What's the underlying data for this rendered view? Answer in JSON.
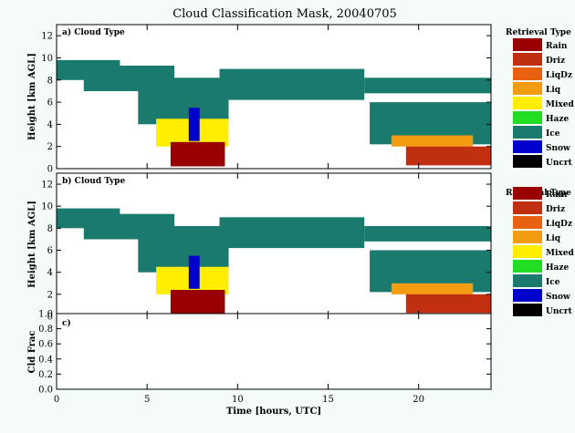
{
  "chart_data": {
    "type": "heatmap",
    "title": "Cloud Classification Mask, 20040705",
    "xlabel": "Time [hours, UTC]",
    "xlim": [
      0,
      24
    ],
    "x_ticks": [
      "0",
      "5",
      "10",
      "15",
      "20"
    ],
    "colors": {
      "Rain": "#990000",
      "Driz": "#c03010",
      "LiqDz": "#e86010",
      "Liq": "#f39c12",
      "Mixed": "#ffee00",
      "Haze": "#22dd22",
      "Ice": "#1a7a6e",
      "Snow": "#0000cc",
      "Uncrt": "#000000"
    },
    "panels": [
      {
        "id": "a",
        "label": "a) Cloud Type",
        "ylabel": "Height [km AGL]",
        "ylim": [
          0,
          13
        ],
        "y_ticks": [
          "0",
          "2",
          "4",
          "6",
          "8",
          "10",
          "12"
        ],
        "legend_title": "Retrieval Type",
        "legend": [
          "Rain",
          "Driz",
          "LiqDz",
          "Liq",
          "Mixed",
          "Haze",
          "Ice",
          "Snow",
          "Uncrt"
        ],
        "regions": [
          {
            "type": "Ice",
            "t0": 0.0,
            "t1": 3.5,
            "h0": 8.0,
            "h1": 9.8
          },
          {
            "type": "Ice",
            "t0": 1.5,
            "t1": 6.5,
            "h0": 7.0,
            "h1": 9.3
          },
          {
            "type": "Ice",
            "t0": 4.5,
            "t1": 9.5,
            "h0": 4.0,
            "h1": 8.2
          },
          {
            "type": "Ice",
            "t0": 9.0,
            "t1": 17.0,
            "h0": 6.2,
            "h1": 9.0
          },
          {
            "type": "Ice",
            "t0": 17.0,
            "t1": 24.0,
            "h0": 6.8,
            "h1": 8.2
          },
          {
            "type": "Ice",
            "t0": 17.3,
            "t1": 24.0,
            "h0": 2.2,
            "h1": 6.0
          },
          {
            "type": "Mixed",
            "t0": 5.5,
            "t1": 9.5,
            "h0": 2.0,
            "h1": 4.5
          },
          {
            "type": "Snow",
            "t0": 7.3,
            "t1": 7.9,
            "h0": 2.5,
            "h1": 5.5
          },
          {
            "type": "Liq",
            "t0": 18.5,
            "t1": 23.0,
            "h0": 2.0,
            "h1": 3.0
          },
          {
            "type": "Rain",
            "t0": 6.3,
            "t1": 9.3,
            "h0": 0.2,
            "h1": 2.4
          },
          {
            "type": "Driz",
            "t0": 19.3,
            "t1": 24.0,
            "h0": 0.3,
            "h1": 2.0
          }
        ]
      },
      {
        "id": "b",
        "label": "b) Cloud Type",
        "ylabel": "Height [km AGL]",
        "ylim": [
          0,
          13
        ],
        "y_ticks": [
          "0",
          "2",
          "4",
          "6",
          "8",
          "10",
          "12"
        ],
        "legend_title": "Retrieval Type",
        "legend": [
          "Rain",
          "Driz",
          "LiqDz",
          "Liq",
          "Mixed",
          "Haze",
          "Ice",
          "Snow",
          "Uncrt"
        ],
        "regions": [
          {
            "type": "Ice",
            "t0": 0.0,
            "t1": 3.5,
            "h0": 8.0,
            "h1": 9.8
          },
          {
            "type": "Ice",
            "t0": 1.5,
            "t1": 6.5,
            "h0": 7.0,
            "h1": 9.3
          },
          {
            "type": "Ice",
            "t0": 4.5,
            "t1": 9.5,
            "h0": 4.0,
            "h1": 8.2
          },
          {
            "type": "Ice",
            "t0": 9.0,
            "t1": 17.0,
            "h0": 6.2,
            "h1": 9.0
          },
          {
            "type": "Ice",
            "t0": 17.0,
            "t1": 24.0,
            "h0": 6.8,
            "h1": 8.2
          },
          {
            "type": "Ice",
            "t0": 17.3,
            "t1": 24.0,
            "h0": 2.2,
            "h1": 6.0
          },
          {
            "type": "Mixed",
            "t0": 5.5,
            "t1": 9.5,
            "h0": 2.0,
            "h1": 4.5
          },
          {
            "type": "Snow",
            "t0": 7.3,
            "t1": 7.9,
            "h0": 2.5,
            "h1": 5.5
          },
          {
            "type": "Liq",
            "t0": 18.5,
            "t1": 23.0,
            "h0": 2.0,
            "h1": 3.0
          },
          {
            "type": "Rain",
            "t0": 6.3,
            "t1": 9.3,
            "h0": 0.2,
            "h1": 2.4
          },
          {
            "type": "Driz",
            "t0": 19.3,
            "t1": 24.0,
            "h0": 0.3,
            "h1": 2.0
          }
        ]
      },
      {
        "id": "c",
        "label": "c)",
        "ylabel": "Cld Frac",
        "ylim": [
          0,
          1
        ],
        "y_ticks": [
          "0.0",
          "0.2",
          "0.4",
          "0.6",
          "0.8",
          "1.0"
        ]
      }
    ]
  }
}
